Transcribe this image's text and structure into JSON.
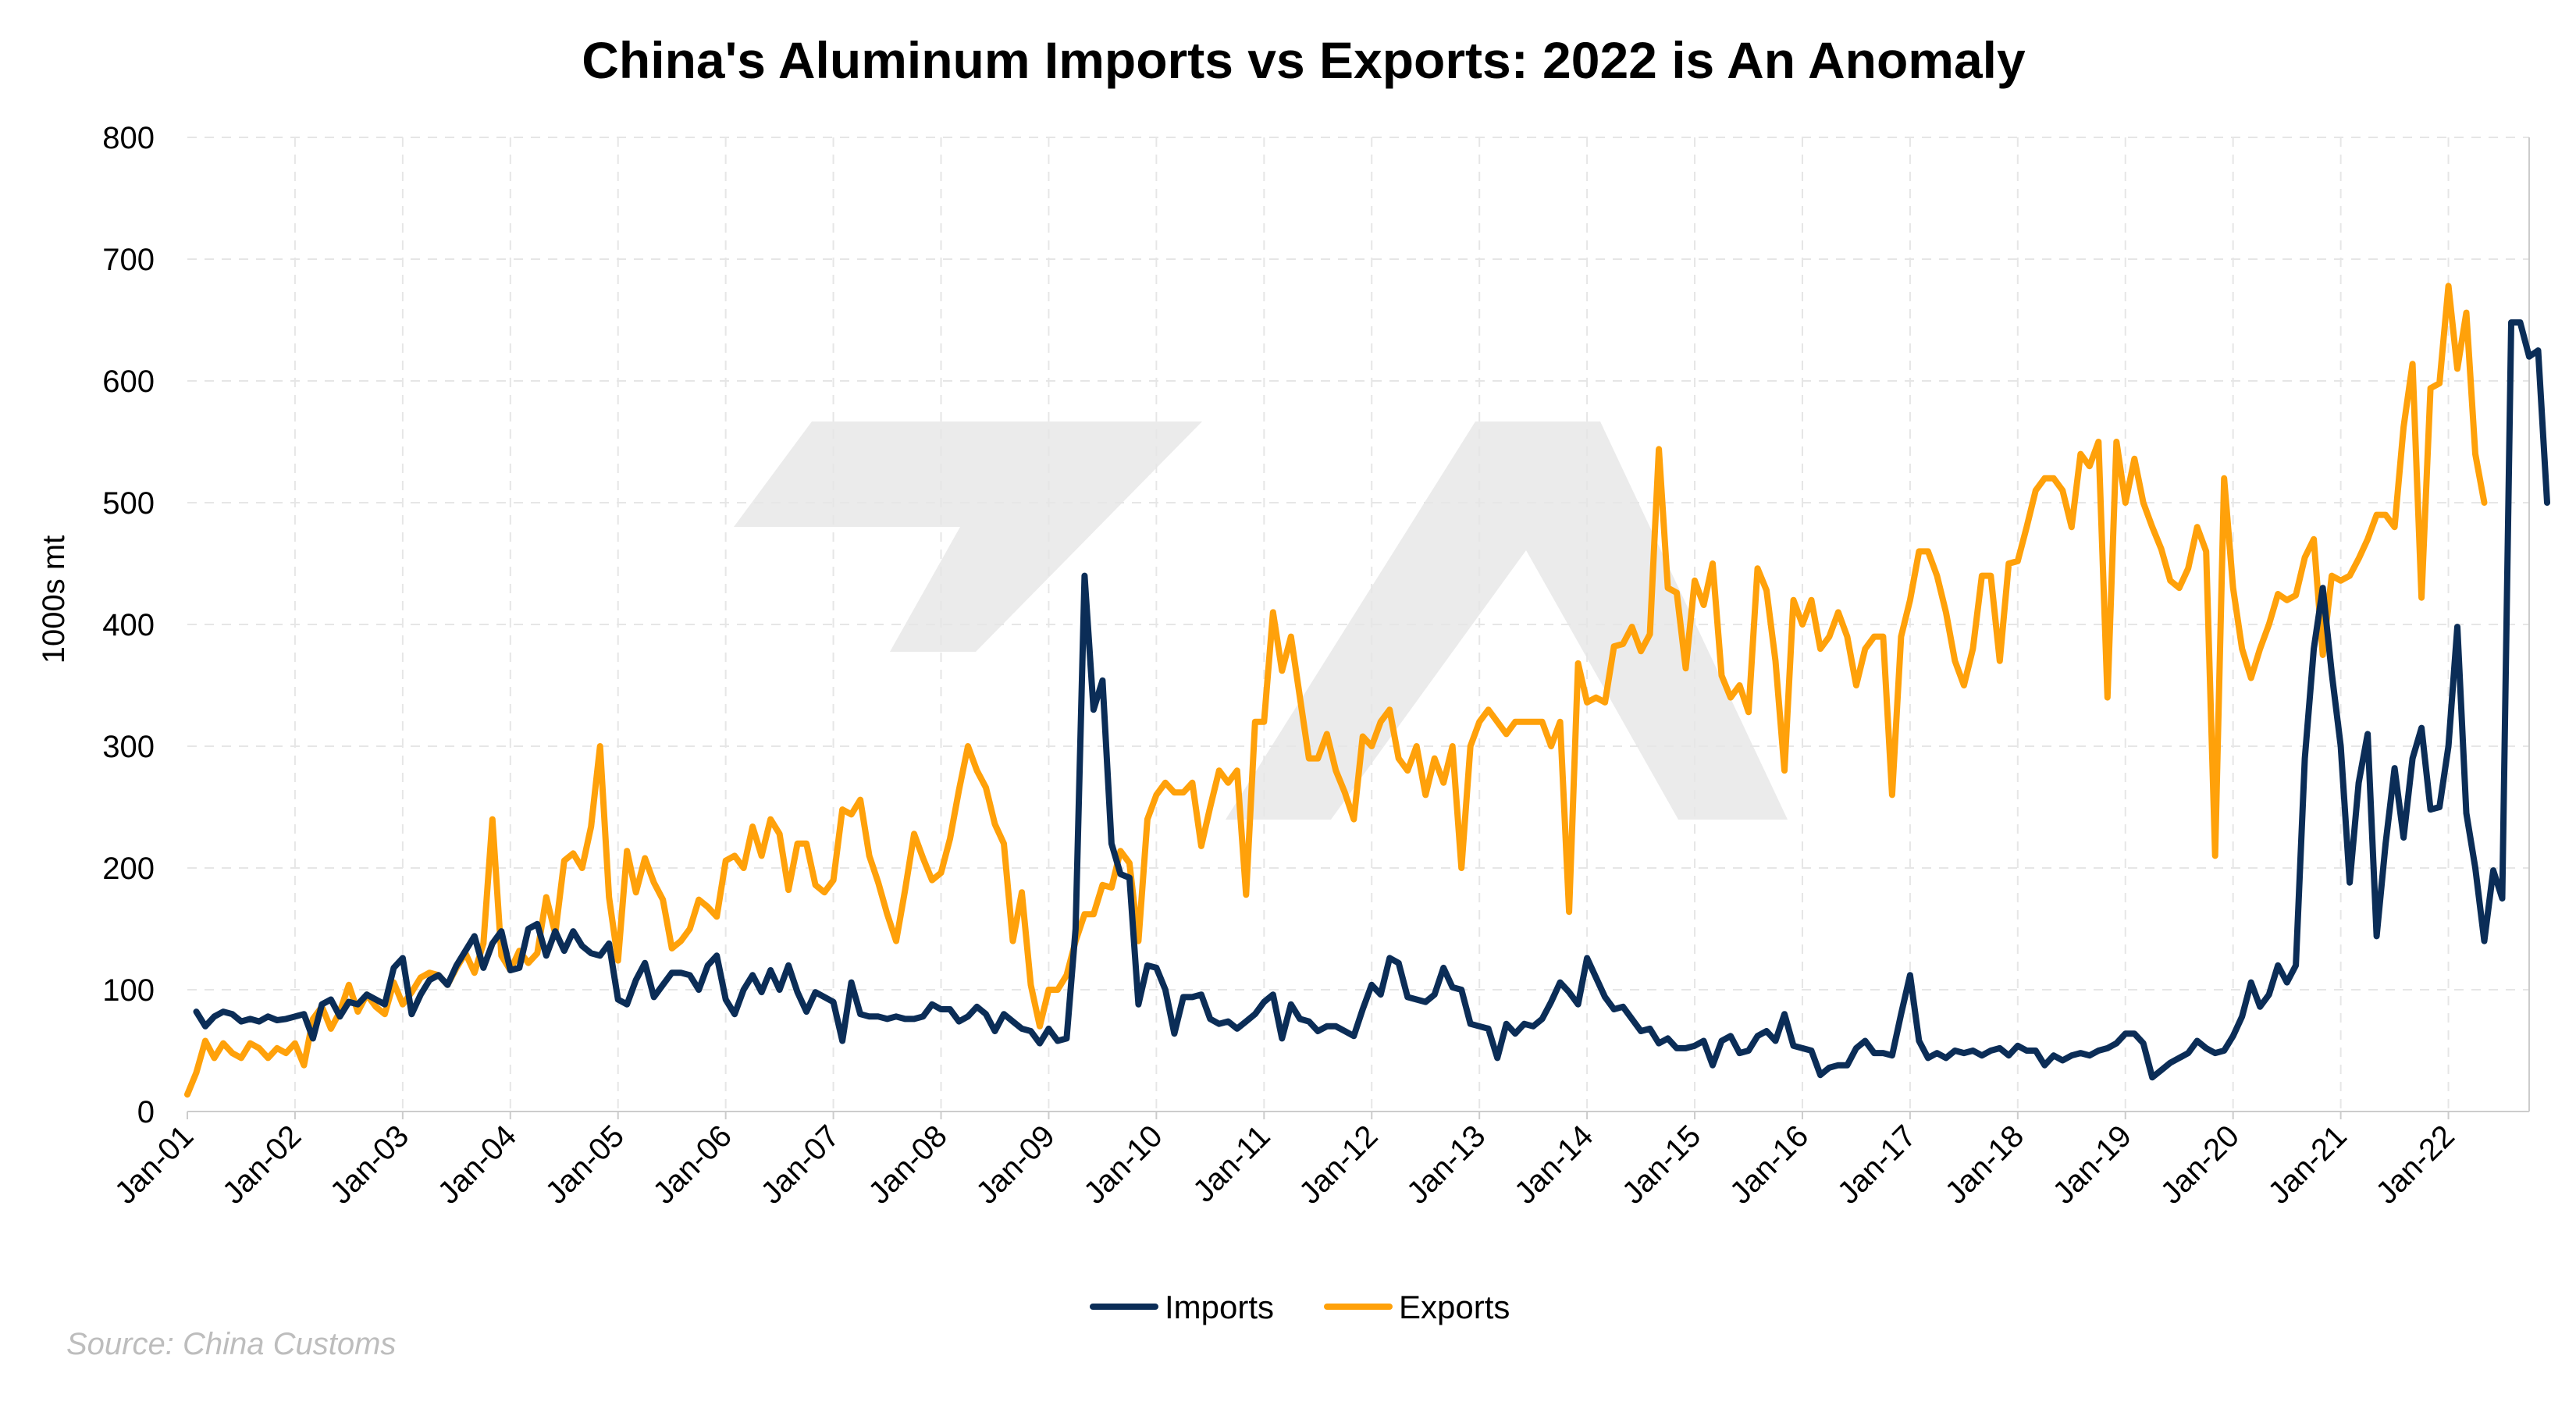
{
  "colors": {
    "imports": "#0b2d57",
    "exports": "#ffa10a",
    "watermark": "#ebebeb"
  },
  "source": "Source: China Customs",
  "chart_data": {
    "type": "line",
    "title": "China's Aluminum Imports vs Exports: 2022 is An Anomaly",
    "ylabel": "1000s mt",
    "xlabel": "",
    "ylim": [
      0,
      800
    ],
    "yticks": [
      0,
      100,
      200,
      300,
      400,
      500,
      600,
      700,
      800
    ],
    "xrange": [
      "2001-01",
      "2022-10"
    ],
    "xtick_labels": [
      "Jan-01",
      "Jan-02",
      "Jan-03",
      "Jan-04",
      "Jan-05",
      "Jan-06",
      "Jan-07",
      "Jan-08",
      "Jan-09",
      "Jan-10",
      "Jan-11",
      "Jan-12",
      "Jan-13",
      "Jan-14",
      "Jan-15",
      "Jan-16",
      "Jan-17",
      "Jan-18",
      "Jan-19",
      "Jan-20",
      "Jan-21",
      "Jan-22"
    ],
    "grid": true,
    "legend": "bottom-center",
    "series": [
      {
        "name": "Imports",
        "start": "2001-02",
        "values": [
          82,
          70,
          78,
          82,
          80,
          74,
          76,
          74,
          78,
          75,
          76,
          78,
          80,
          60,
          88,
          92,
          78,
          90,
          88,
          96,
          92,
          88,
          118,
          126,
          80,
          96,
          108,
          112,
          104,
          120,
          132,
          144,
          118,
          138,
          148,
          116,
          118,
          150,
          154,
          128,
          148,
          132,
          148,
          136,
          130,
          128,
          138,
          92,
          88,
          108,
          122,
          94,
          104,
          114,
          114,
          112,
          100,
          120,
          128,
          92,
          80,
          100,
          112,
          98,
          116,
          100,
          120,
          98,
          82,
          98,
          94,
          90,
          58,
          106,
          80,
          78,
          78,
          76,
          78,
          76,
          76,
          78,
          88,
          84,
          84,
          74,
          78,
          86,
          80,
          66,
          80,
          74,
          68,
          66,
          56,
          68,
          58,
          60,
          150,
          440,
          330,
          354,
          220,
          195,
          192,
          88,
          120,
          118,
          100,
          64,
          94,
          94,
          96,
          76,
          72,
          74,
          68,
          74,
          80,
          90,
          96,
          60,
          88,
          76,
          74,
          66,
          70,
          70,
          66,
          62,
          84,
          104,
          96,
          126,
          122,
          94,
          92,
          90,
          96,
          118,
          102,
          100,
          72,
          70,
          68,
          44,
          72,
          64,
          72,
          70,
          76,
          90,
          106,
          98,
          88,
          126,
          110,
          94,
          84,
          86,
          76,
          66,
          68,
          56,
          60,
          52,
          52,
          54,
          58,
          38,
          58,
          62,
          48,
          50,
          62,
          66,
          58,
          80,
          54,
          52,
          50,
          30,
          36,
          38,
          38,
          52,
          58,
          48,
          48,
          46,
          80,
          112,
          58,
          44,
          48,
          44,
          50,
          48,
          50,
          46,
          50,
          52,
          46,
          54,
          50,
          50,
          38,
          46,
          42,
          46,
          48,
          46,
          50,
          52,
          56,
          64,
          64,
          56,
          28,
          34,
          40,
          44,
          48,
          58,
          52,
          48,
          50,
          62,
          78,
          106,
          86,
          96,
          120,
          106,
          120,
          290,
          380,
          430,
          360,
          300,
          188,
          270,
          310,
          144,
          220,
          282,
          225,
          290,
          315,
          248,
          250,
          300,
          398,
          245,
          200,
          140,
          198,
          175,
          648,
          648,
          620,
          625,
          500
        ]
      },
      {
        "name": "Exports",
        "start": "2001-01",
        "values": [
          14,
          32,
          58,
          44,
          56,
          48,
          44,
          56,
          52,
          44,
          52,
          48,
          56,
          38,
          76,
          86,
          68,
          82,
          104,
          82,
          96,
          86,
          80,
          106,
          88,
          98,
          110,
          114,
          112,
          104,
          118,
          130,
          114,
          138,
          240,
          128,
          116,
          132,
          122,
          130,
          176,
          146,
          206,
          212,
          200,
          234,
          300,
          176,
          124,
          214,
          180,
          208,
          188,
          174,
          134,
          140,
          150,
          174,
          168,
          160,
          206,
          210,
          200,
          234,
          210,
          240,
          228,
          182,
          220,
          220,
          186,
          180,
          190,
          248,
          244,
          256,
          210,
          188,
          162,
          140,
          182,
          228,
          208,
          190,
          196,
          224,
          264,
          300,
          280,
          266,
          236,
          220,
          140,
          180,
          104,
          70,
          100,
          100,
          112,
          140,
          162,
          162,
          186,
          184,
          214,
          204,
          140,
          240,
          260,
          270,
          262,
          262,
          270,
          218,
          250,
          280,
          270,
          280,
          178,
          320,
          320,
          410,
          362,
          390,
          340,
          290,
          290,
          310,
          280,
          262,
          240,
          308,
          300,
          320,
          330,
          290,
          280,
          300,
          260,
          290,
          270,
          300,
          200,
          300,
          320,
          330,
          320,
          310,
          320,
          320,
          320,
          320,
          300,
          320,
          164,
          368,
          336,
          340,
          336,
          382,
          384,
          398,
          378,
          392,
          544,
          430,
          426,
          364,
          436,
          416,
          450,
          358,
          340,
          350,
          328,
          446,
          428,
          370,
          280,
          420,
          400,
          420,
          380,
          390,
          410,
          390,
          350,
          380,
          390,
          390,
          260,
          390,
          420,
          460,
          460,
          440,
          410,
          370,
          350,
          380,
          440,
          440,
          370,
          450,
          452,
          480,
          510,
          520,
          520,
          510,
          480,
          540,
          530,
          550,
          340,
          550,
          500,
          536,
          500,
          480,
          462,
          436,
          430,
          446,
          480,
          460,
          210,
          520,
          430,
          380,
          356,
          380,
          400,
          425,
          420,
          424,
          455,
          470,
          375,
          440,
          436,
          440,
          454,
          470,
          490,
          490,
          480,
          562,
          614,
          422,
          594,
          598,
          678,
          610,
          656,
          540,
          500
        ]
      }
    ]
  }
}
